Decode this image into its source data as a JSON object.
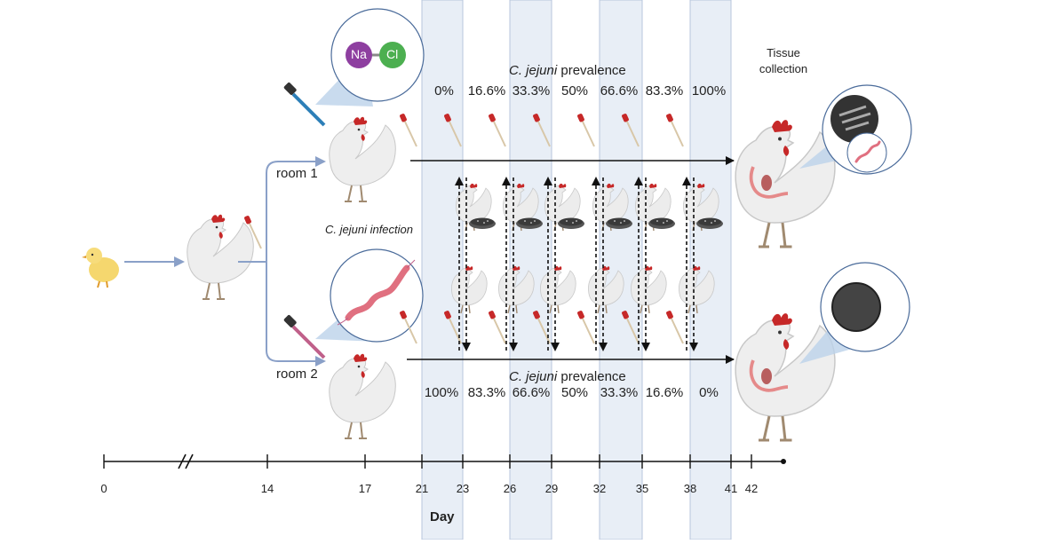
{
  "sodium_badge": "Na",
  "chloride_badge": "Cl",
  "tissue_collection": "Tissue\ncollection",
  "room1_label": "room 1",
  "room2_label": "room 2",
  "infection_label": "C. jejuni infection",
  "prevalence_top": {
    "species": "C. jejuni",
    "word": "prevalence"
  },
  "prevalence_bottom": {
    "species": "C. jejuni",
    "word": "prevalence"
  },
  "room1_prevalence": [
    "0%",
    "16.6%",
    "33.3%",
    "50%",
    "66.6%",
    "83.3%",
    "100%"
  ],
  "room2_prevalence": [
    "100%",
    "83.3%",
    "66.6%",
    "50%",
    "33.3%",
    "16.6%",
    "0%"
  ],
  "timeline": {
    "ticks": [
      "0",
      "14",
      "17",
      "21",
      "23",
      "26",
      "29",
      "32",
      "35",
      "38",
      "41",
      "42"
    ],
    "axis_label": "Day"
  },
  "colors": {
    "timeline_band": "#e8eef6",
    "arrow_blue": "#8aa0c8",
    "sodium": "#8e3fa0",
    "chloride": "#4caf50",
    "campylobacter": "#e07080",
    "comb_red": "#c62828"
  },
  "icons": {
    "chick": "chick-icon",
    "hen": "hen-icon",
    "dropper": "dropper-icon",
    "swab": "swab-icon",
    "petri_dish": "petri-dish-icon",
    "bacteria": "bacteria-icon"
  }
}
